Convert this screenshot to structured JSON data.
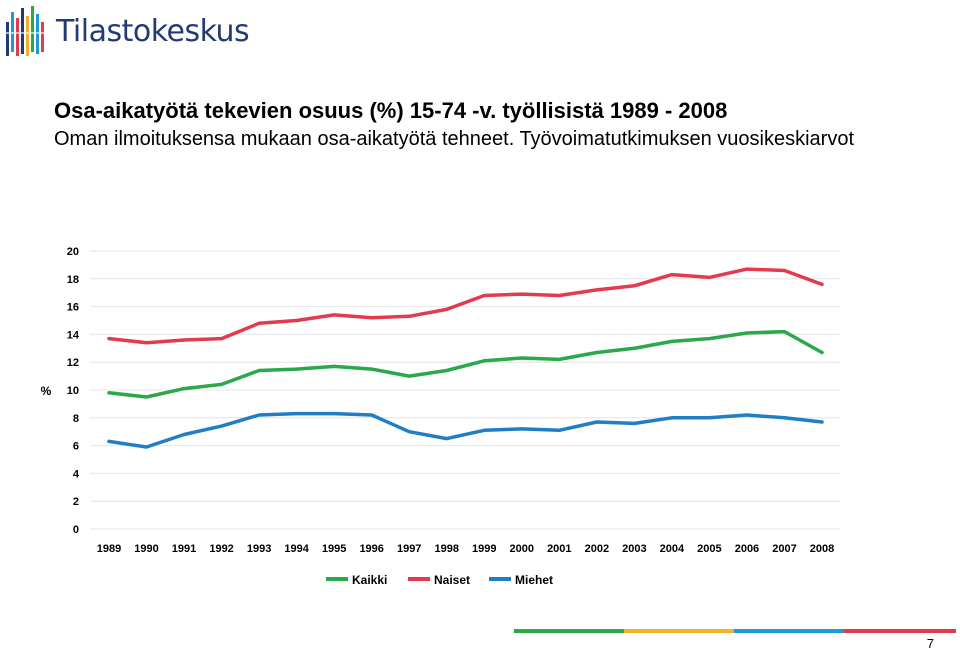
{
  "brand": {
    "logo_text": "Tilastokeskus",
    "logo_colors": [
      "#243a73",
      "#1f9ad6",
      "#e23b4e",
      "#f2b32a",
      "#2aa84a"
    ]
  },
  "header": {
    "title": "Osa-aikatyötä tekevien osuus (%) 15-74 -v. työllisistä 1989 - 2008",
    "subtitle": "Oman ilmoituksensa mukaan osa-aikatyötä tehneet. Työvoimatutkimuksen vuosikeskiarvot"
  },
  "footer": {
    "page_number": "7",
    "bar_colors": [
      "#2aa84a",
      "#f2b32a",
      "#1f9ad6",
      "#e23b4e"
    ]
  },
  "chart_data": {
    "type": "line",
    "ylabel": "%",
    "ylim": [
      0,
      20
    ],
    "y_ticks": [
      "0",
      "2",
      "4",
      "6",
      "8",
      "10",
      "12",
      "14",
      "16",
      "18",
      "20"
    ],
    "grid": true,
    "legend_position": "bottom",
    "categories": [
      "1989",
      "1990",
      "1991",
      "1992",
      "1993",
      "1994",
      "1995",
      "1996",
      "1997",
      "1998",
      "1999",
      "2000",
      "2001",
      "2002",
      "2003",
      "2004",
      "2005",
      "2006",
      "2007",
      "2008"
    ],
    "series": [
      {
        "name": "Kaikki",
        "color": "#2aa84a",
        "values": [
          9.8,
          9.5,
          10.1,
          10.4,
          11.4,
          11.5,
          11.7,
          11.5,
          11.0,
          11.4,
          12.1,
          12.3,
          12.2,
          12.7,
          13.0,
          13.5,
          13.7,
          14.1,
          14.2,
          12.7
        ]
      },
      {
        "name": "Naiset",
        "color": "#e23b4e",
        "values": [
          13.7,
          13.4,
          13.6,
          13.7,
          14.8,
          15.0,
          15.4,
          15.2,
          15.3,
          15.8,
          16.8,
          16.9,
          16.8,
          17.2,
          17.5,
          18.3,
          18.1,
          18.7,
          18.6,
          17.6
        ]
      },
      {
        "name": "Miehet",
        "color": "#1f7ec6",
        "values": [
          6.3,
          5.9,
          6.8,
          7.4,
          8.2,
          8.3,
          8.3,
          8.2,
          7.0,
          6.5,
          7.1,
          7.2,
          7.1,
          7.7,
          7.6,
          8.0,
          8.0,
          8.2,
          8.0,
          7.7
        ]
      }
    ]
  }
}
